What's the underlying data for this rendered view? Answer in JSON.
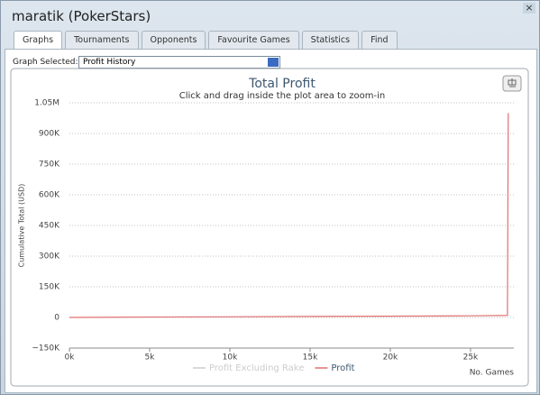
{
  "window": {
    "title": "maratik (PokerStars)",
    "tabs": [
      "Graphs",
      "Tournaments",
      "Opponents",
      "Favourite Games",
      "Statistics",
      "Find"
    ],
    "graph_selected_label": "Graph Selected:",
    "graph_selected_value": "Profit History"
  },
  "chart_data": {
    "type": "line",
    "title": "Total Profit",
    "subtitle": "Click and drag inside the plot area to zoom-in",
    "y_label": "Cumulative Total (USD)",
    "x_label": "No. Games",
    "x": [
      0,
      5000,
      10000,
      15000,
      20000,
      25000,
      27300,
      27350
    ],
    "series": [
      {
        "name": "Profit Excluding Rake",
        "color": "#cccccc",
        "visible": false,
        "values": [
          null,
          null,
          null,
          null,
          null,
          null,
          null,
          null
        ]
      },
      {
        "name": "Profit",
        "color": "#e07070",
        "visible": true,
        "values": [
          0,
          2000,
          3000,
          5000,
          6000,
          8000,
          10000,
          1000000
        ]
      }
    ],
    "xlim": [
      0,
      27700
    ],
    "xticks": [
      {
        "value": 0,
        "label": "0k"
      },
      {
        "value": 5000,
        "label": "5k"
      },
      {
        "value": 10000,
        "label": "10k"
      },
      {
        "value": 15000,
        "label": "15k"
      },
      {
        "value": 20000,
        "label": "20k"
      },
      {
        "value": 25000,
        "label": "25k"
      }
    ],
    "ylim": [
      -150000,
      1050000
    ],
    "yticks": [
      {
        "value": -150000,
        "label": "−150K"
      },
      0,
      {
        "value": 150000,
        "label": "150K"
      },
      {
        "value": 300000,
        "label": "300K"
      },
      {
        "value": 450000,
        "label": "450K"
      },
      {
        "value": 600000,
        "label": "600K"
      },
      {
        "value": 750000,
        "label": "750K"
      },
      {
        "value": 900000,
        "label": "900K"
      },
      {
        "value": 1050000,
        "label": "1.05M"
      }
    ],
    "grid": true
  }
}
